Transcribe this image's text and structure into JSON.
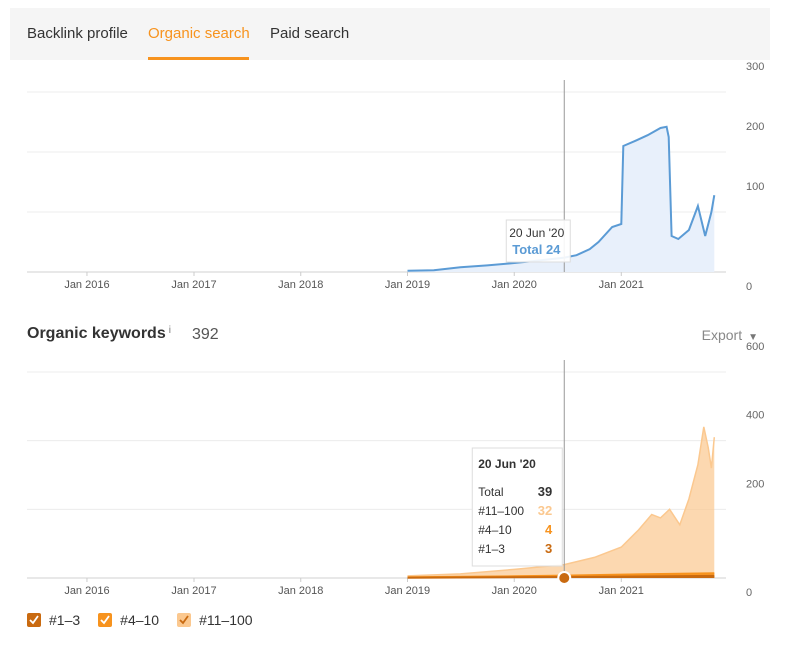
{
  "tabs": [
    {
      "label": "Backlink profile",
      "active": false
    },
    {
      "label": "Organic search",
      "active": true
    },
    {
      "label": "Paid search",
      "active": false
    }
  ],
  "colors": {
    "accent": "#f7931e",
    "traffic_line": "#5b9bd5",
    "traffic_fill": "#e8f0fb",
    "kw_11_100": "#fbc88f",
    "kw_4_10": "#f7931e",
    "kw_1_3": "#c96a10"
  },
  "keywords_header": {
    "title": "Organic keywords",
    "info": "i",
    "count": "392",
    "export_label": "Export",
    "export_caret": "▼"
  },
  "legend": [
    {
      "label": "#1–3",
      "color": "#c96a10"
    },
    {
      "label": "#4–10",
      "color": "#f7931e"
    },
    {
      "label": "#11–100",
      "color": "#fbc88f"
    }
  ],
  "chart_data": [
    {
      "type": "area",
      "x_tick_labels": [
        "Jan 2016",
        "Jan 2017",
        "Jan 2018",
        "Jan 2019",
        "Jan 2020",
        "Jan 2021"
      ],
      "y_tick_labels": [
        "300",
        "200",
        "100",
        "0"
      ],
      "ylim": [
        0,
        300
      ],
      "xlim": [
        "2015-06-10",
        "2021-12-25"
      ],
      "grid": true,
      "series": [
        {
          "color": "#5b9bd5",
          "points": [
            [
              "2019-01-01",
              2
            ],
            [
              "2019-04-01",
              3
            ],
            [
              "2019-07-01",
              8
            ],
            [
              "2019-10-01",
              11
            ],
            [
              "2020-01-01",
              15
            ],
            [
              "2020-03-01",
              18
            ],
            [
              "2020-06-20",
              24
            ],
            [
              "2020-08-01",
              28
            ],
            [
              "2020-09-15",
              38
            ],
            [
              "2020-10-15",
              50
            ],
            [
              "2020-12-01",
              75
            ],
            [
              "2021-01-01",
              80
            ],
            [
              "2021-01-08",
              210
            ],
            [
              "2021-02-15",
              218
            ],
            [
              "2021-04-01",
              228
            ],
            [
              "2021-05-15",
              240
            ],
            [
              "2021-06-05",
              242
            ],
            [
              "2021-06-12",
              225
            ],
            [
              "2021-06-22",
              60
            ],
            [
              "2021-07-15",
              55
            ],
            [
              "2021-08-20",
              70
            ],
            [
              "2021-09-20",
              110
            ],
            [
              "2021-10-15",
              60
            ],
            [
              "2021-11-05",
              100
            ],
            [
              "2021-11-15",
              128
            ]
          ]
        }
      ],
      "tooltip": {
        "date": "20 Jun '20",
        "label": "Total 24",
        "x": "2020-06-20",
        "value": 24
      }
    },
    {
      "type": "area",
      "x_tick_labels": [
        "Jan 2016",
        "Jan 2017",
        "Jan 2018",
        "Jan 2019",
        "Jan 2020",
        "Jan 2021"
      ],
      "y_tick_labels": [
        "600",
        "400",
        "200",
        "0"
      ],
      "ylim": [
        0,
        600
      ],
      "xlim": [
        "2015-06-10",
        "2021-12-25"
      ],
      "grid": true,
      "series": [
        {
          "name": "#11–100",
          "color": "#fbc88f",
          "points": [
            [
              "2019-01-01",
              6
            ],
            [
              "2019-07-01",
              12
            ],
            [
              "2020-01-01",
              25
            ],
            [
              "2020-06-20",
              39
            ],
            [
              "2020-10-01",
              60
            ],
            [
              "2021-01-01",
              90
            ],
            [
              "2021-03-01",
              140
            ],
            [
              "2021-04-15",
              185
            ],
            [
              "2021-05-15",
              175
            ],
            [
              "2021-06-15",
              200
            ],
            [
              "2021-07-20",
              155
            ],
            [
              "2021-08-20",
              230
            ],
            [
              "2021-09-20",
              330
            ],
            [
              "2021-10-10",
              440
            ],
            [
              "2021-10-25",
              380
            ],
            [
              "2021-11-05",
              320
            ],
            [
              "2021-11-15",
              410
            ]
          ]
        },
        {
          "name": "#4–10",
          "color": "#f7931e",
          "points": [
            [
              "2019-01-01",
              2
            ],
            [
              "2020-01-01",
              5
            ],
            [
              "2020-06-20",
              7
            ],
            [
              "2021-01-01",
              10
            ],
            [
              "2021-11-15",
              14
            ]
          ]
        },
        {
          "name": "#1–3",
          "color": "#c96a10",
          "points": [
            [
              "2019-01-01",
              1
            ],
            [
              "2020-06-20",
              3
            ],
            [
              "2021-01-01",
              4
            ],
            [
              "2021-11-15",
              6
            ]
          ]
        }
      ],
      "tooltip": {
        "date": "20 Jun '20",
        "rows": [
          {
            "label": "Total",
            "value": "39"
          },
          {
            "label": "#11–100",
            "value": "32"
          },
          {
            "label": "#4–10",
            "value": "4"
          },
          {
            "label": "#1–3",
            "value": "3"
          }
        ],
        "x": "2020-06-20"
      }
    }
  ]
}
